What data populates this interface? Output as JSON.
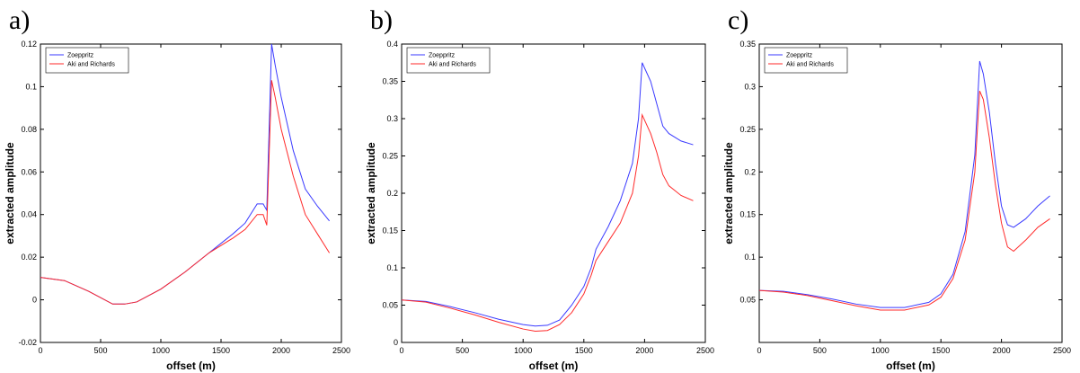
{
  "chart_data": [
    {
      "type": "line",
      "label": "a)",
      "xlabel": "offset (m)",
      "ylabel": "extracted amplitude",
      "x": [
        0,
        200,
        400,
        600,
        700,
        800,
        1000,
        1200,
        1400,
        1600,
        1700,
        1800,
        1850,
        1880,
        1920,
        1950,
        2000,
        2100,
        2200,
        2300,
        2400
      ],
      "series": [
        {
          "name": "Zoeppritz",
          "color": "#3a3aff",
          "values": [
            0.0105,
            0.009,
            0.004,
            -0.002,
            -0.002,
            -0.001,
            0.005,
            0.013,
            0.022,
            0.031,
            0.036,
            0.045,
            0.045,
            0.042,
            0.12,
            0.11,
            0.095,
            0.07,
            0.052,
            0.044,
            0.037
          ]
        },
        {
          "name": "Aki and Richards",
          "color": "#ff2a2a",
          "values": [
            0.0105,
            0.009,
            0.004,
            -0.002,
            -0.002,
            -0.001,
            0.005,
            0.013,
            0.022,
            0.029,
            0.033,
            0.04,
            0.04,
            0.035,
            0.103,
            0.095,
            0.08,
            0.058,
            0.04,
            0.031,
            0.022
          ]
        }
      ],
      "xlim": [
        0,
        2500
      ],
      "xticks": [
        0,
        500,
        1000,
        1500,
        2000,
        2500
      ],
      "ylim": [
        -0.02,
        0.12
      ],
      "yticks": [
        -0.02,
        0,
        0.02,
        0.04,
        0.06,
        0.08,
        0.1,
        0.12
      ],
      "legend": "upper left"
    },
    {
      "type": "line",
      "label": "b)",
      "xlabel": "offset (m)",
      "ylabel": "extracted amplitude",
      "x": [
        0,
        200,
        400,
        600,
        800,
        1000,
        1100,
        1200,
        1300,
        1400,
        1500,
        1560,
        1600,
        1700,
        1800,
        1900,
        1950,
        1980,
        2050,
        2100,
        2150,
        2200,
        2300,
        2400
      ],
      "series": [
        {
          "name": "Zoeppritz",
          "color": "#3a3aff",
          "values": [
            0.057,
            0.055,
            0.048,
            0.04,
            0.031,
            0.024,
            0.022,
            0.023,
            0.03,
            0.05,
            0.075,
            0.1,
            0.125,
            0.155,
            0.19,
            0.24,
            0.3,
            0.375,
            0.35,
            0.32,
            0.29,
            0.28,
            0.27,
            0.265
          ]
        },
        {
          "name": "Aki and Richards",
          "color": "#ff2a2a",
          "values": [
            0.057,
            0.054,
            0.046,
            0.037,
            0.027,
            0.018,
            0.015,
            0.016,
            0.024,
            0.04,
            0.065,
            0.09,
            0.11,
            0.135,
            0.16,
            0.2,
            0.25,
            0.305,
            0.28,
            0.255,
            0.225,
            0.21,
            0.197,
            0.19
          ]
        }
      ],
      "xlim": [
        0,
        2500
      ],
      "xticks": [
        0,
        500,
        1000,
        1500,
        2000,
        2500
      ],
      "ylim": [
        0,
        0.4
      ],
      "yticks": [
        0,
        0.05,
        0.1,
        0.15,
        0.2,
        0.25,
        0.3,
        0.35,
        0.4
      ],
      "legend": "upper left"
    },
    {
      "type": "line",
      "label": "c)",
      "xlabel": "offset (m)",
      "ylabel": "extracted amplitude",
      "x": [
        0,
        200,
        400,
        600,
        800,
        1000,
        1200,
        1400,
        1500,
        1600,
        1700,
        1780,
        1820,
        1850,
        1900,
        1950,
        2000,
        2050,
        2100,
        2200,
        2300,
        2400
      ],
      "series": [
        {
          "name": "Zoeppritz",
          "color": "#3a3aff",
          "values": [
            0.061,
            0.06,
            0.056,
            0.051,
            0.045,
            0.041,
            0.041,
            0.047,
            0.057,
            0.08,
            0.13,
            0.22,
            0.33,
            0.315,
            0.27,
            0.21,
            0.16,
            0.138,
            0.135,
            0.145,
            0.16,
            0.172
          ]
        },
        {
          "name": "Aki and Richards",
          "color": "#ff2a2a",
          "values": [
            0.061,
            0.059,
            0.055,
            0.049,
            0.043,
            0.038,
            0.038,
            0.044,
            0.053,
            0.075,
            0.12,
            0.2,
            0.295,
            0.285,
            0.24,
            0.185,
            0.14,
            0.112,
            0.107,
            0.12,
            0.135,
            0.145
          ]
        }
      ],
      "xlim": [
        0,
        2500
      ],
      "xticks": [
        0,
        500,
        1000,
        1500,
        2000,
        2500
      ],
      "ylim": [
        0,
        0.35
      ],
      "yticks": [
        0.05,
        0.1,
        0.15,
        0.2,
        0.25,
        0.3,
        0.35
      ],
      "legend": "upper left"
    }
  ]
}
